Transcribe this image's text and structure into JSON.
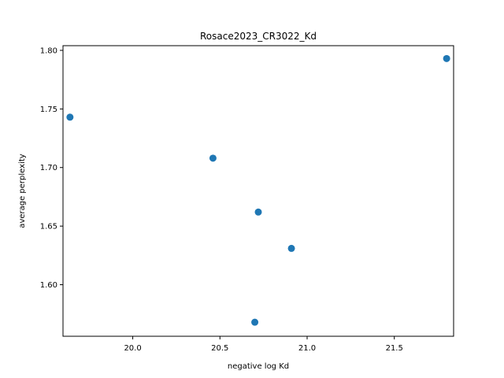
{
  "chart_data": {
    "type": "scatter",
    "title": "Rosace2023_CR3022_Kd",
    "xlabel": "negative log Kd",
    "ylabel": "average perplexity",
    "xlim": [
      19.6,
      21.84
    ],
    "ylim": [
      1.556,
      1.804
    ],
    "x_ticks": [
      20.0,
      20.5,
      21.0,
      21.5
    ],
    "x_tick_labels": [
      "20.0",
      "20.5",
      "21.0",
      "21.5"
    ],
    "y_ticks": [
      1.6,
      1.65,
      1.7,
      1.75,
      1.8
    ],
    "y_tick_labels": [
      "1.60",
      "1.65",
      "1.70",
      "1.75",
      "1.80"
    ],
    "grid": false,
    "point_color": "#1f77b4",
    "points": [
      {
        "x": 19.64,
        "y": 1.743
      },
      {
        "x": 20.46,
        "y": 1.708
      },
      {
        "x": 20.72,
        "y": 1.662
      },
      {
        "x": 20.91,
        "y": 1.631
      },
      {
        "x": 20.7,
        "y": 1.568
      },
      {
        "x": 21.8,
        "y": 1.793
      }
    ]
  }
}
